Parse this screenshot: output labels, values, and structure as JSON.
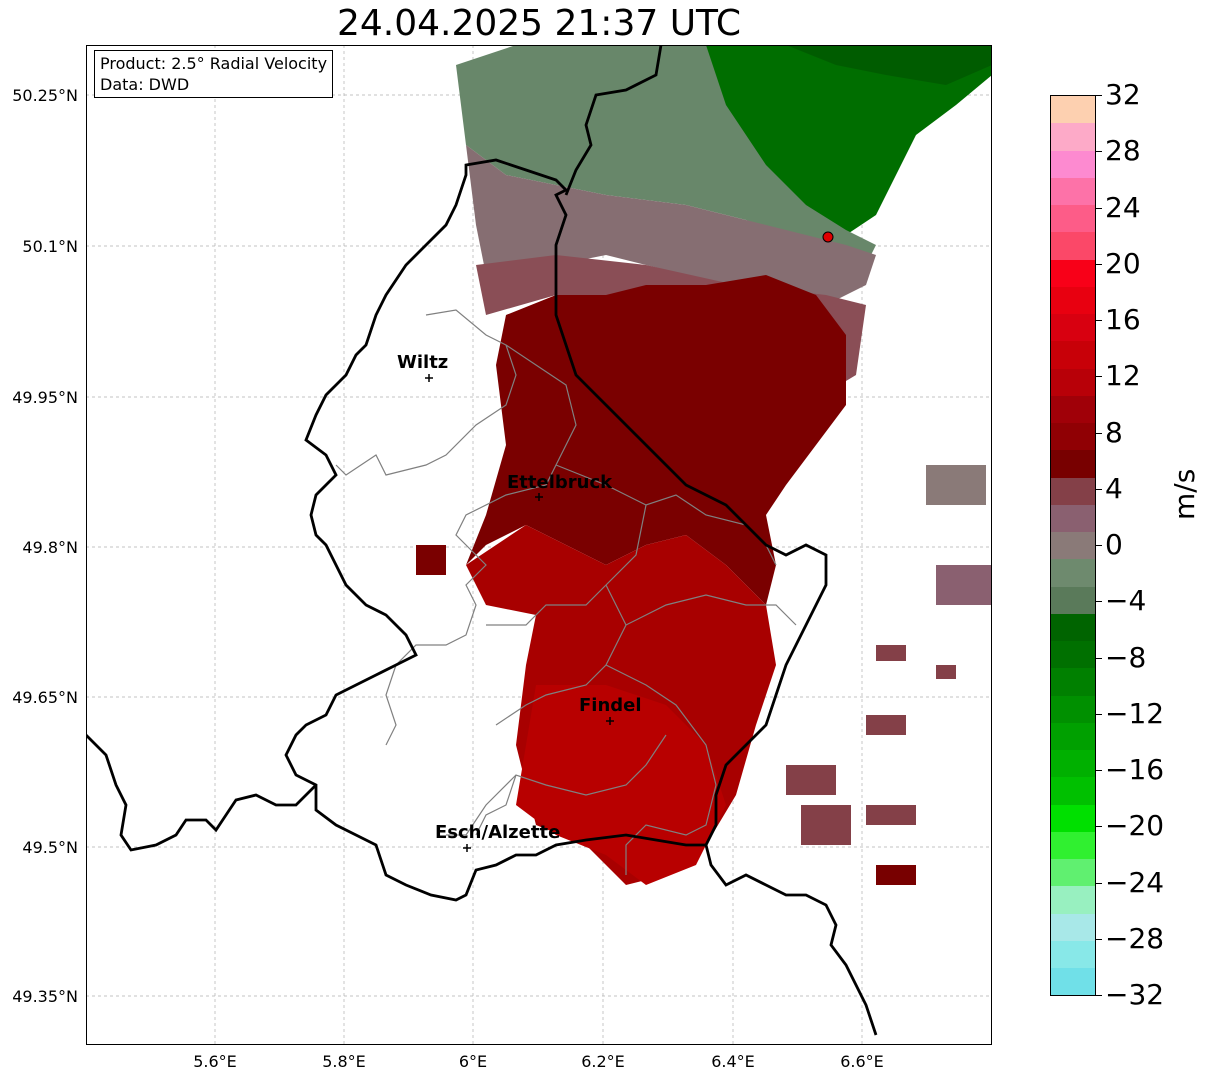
{
  "title": "24.04.2025 21:37 UTC",
  "info": {
    "product": "Product: 2.5° Radial Velocity",
    "data": "Data: DWD"
  },
  "axes": {
    "y_ticks": [
      "50.25°N",
      "50.1°N",
      "49.95°N",
      "49.8°N",
      "49.65°N",
      "49.5°N",
      "49.35°N"
    ],
    "x_ticks": [
      "5.6°E",
      "5.8°E",
      "6°E",
      "6.2°E",
      "6.4°E",
      "6.6°E"
    ]
  },
  "cities": [
    {
      "name": "Wiltz"
    },
    {
      "name": "Ettelbruck"
    },
    {
      "name": "Findel"
    },
    {
      "name": "Esch/Alzette"
    }
  ],
  "colorbar": {
    "unit": "m/s",
    "ticks": [
      "32",
      "28",
      "24",
      "20",
      "16",
      "12",
      "8",
      "4",
      "0",
      "−4",
      "−8",
      "−12",
      "−16",
      "−20",
      "−24",
      "−28",
      "−32"
    ],
    "colors": [
      "#fdd0b0",
      "#fdaac8",
      "#fd8ad0",
      "#fd72a8",
      "#fd5c88",
      "#fb4868",
      "#f80018",
      "#e80010",
      "#d80010",
      "#c80008",
      "#b80008",
      "#a00008",
      "#900004",
      "#780000",
      "#844048",
      "#8a6070",
      "#8a7a78",
      "#6e8a6e",
      "#5a7a5a",
      "#006400",
      "#007000",
      "#008000",
      "#009000",
      "#00a000",
      "#00b000",
      "#00c000",
      "#00e000",
      "#30f030",
      "#60f070",
      "#98f0c0",
      "#a8e8e8",
      "#88e8e8",
      "#70e0e8"
    ],
    "accent_radar": "#e00000"
  }
}
